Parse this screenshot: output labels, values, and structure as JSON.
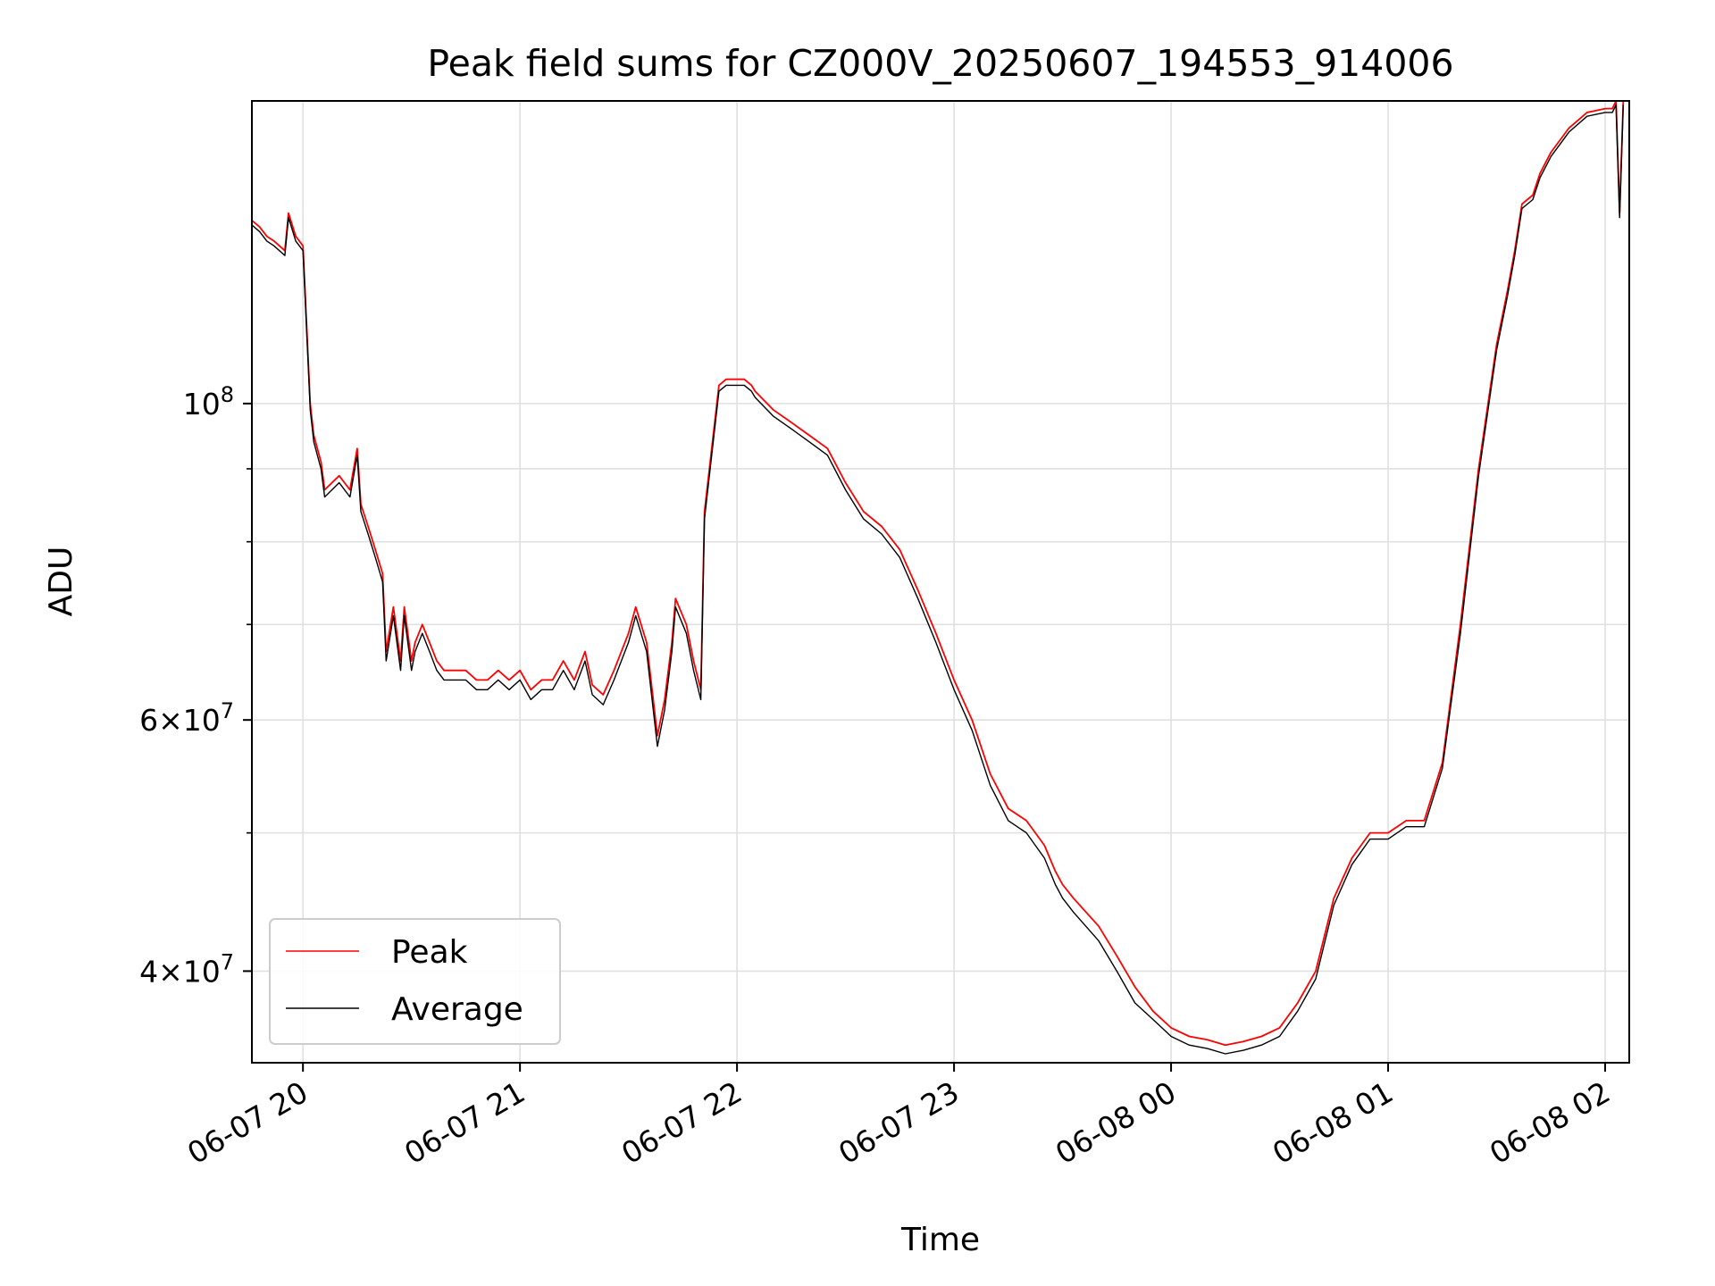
{
  "chart_data": {
    "type": "line",
    "title": "Peak field sums for CZ000V_20250607_194553_914006",
    "xlabel": "Time",
    "ylabel": "ADU",
    "yscale": "log",
    "xlim": [
      "2025-06-07 19:45:53",
      "2025-06-08 02:06:40"
    ],
    "ylim": [
      34500000,
      163000000
    ],
    "x_tick_labels": [
      "06-07 20",
      "06-07 21",
      "06-07 22",
      "06-07 23",
      "06-08 00",
      "06-08 01",
      "06-08 02"
    ],
    "x_tick_times": [
      "2025-06-07 20:00",
      "2025-06-07 21:00",
      "2025-06-07 22:00",
      "2025-06-07 23:00",
      "2025-06-08 00:00",
      "2025-06-08 01:00",
      "2025-06-08 02:00"
    ],
    "y_major_ticks": [
      {
        "value": 40000000,
        "mantissa": "4",
        "exp": "7"
      },
      {
        "value": 60000000,
        "mantissa": "6",
        "exp": "7"
      },
      {
        "value": 100000000,
        "mantissa": "",
        "exp": "8"
      }
    ],
    "y_minor_ticks": [
      50000000,
      70000000,
      80000000,
      90000000
    ],
    "grid": true,
    "legend_position": "lower-left",
    "colors": {
      "peak": "#ff0000",
      "average": "#000000",
      "grid": "#e0e0e0"
    },
    "series": [
      {
        "name": "Peak",
        "color": "#ff0000",
        "x": [
          "19:45",
          "19:48",
          "19:50",
          "19:52",
          "19:55",
          "19:56",
          "19:58",
          "20:00",
          "20:02",
          "20:03",
          "20:05",
          "20:06",
          "20:10",
          "20:13",
          "20:15",
          "20:16",
          "20:18",
          "20:20",
          "20:22",
          "20:23",
          "20:25",
          "20:27",
          "20:28",
          "20:30",
          "20:31",
          "20:33",
          "20:35",
          "20:37",
          "20:39",
          "20:42",
          "20:45",
          "20:48",
          "20:51",
          "20:54",
          "20:57",
          "21:00",
          "21:03",
          "21:06",
          "21:09",
          "21:12",
          "21:15",
          "21:18",
          "21:20",
          "21:23",
          "21:26",
          "21:30",
          "21:32",
          "21:35",
          "21:38",
          "21:40",
          "21:42",
          "21:43",
          "21:46",
          "21:48",
          "21:50",
          "21:51",
          "21:55",
          "21:57",
          "22:00",
          "22:02",
          "22:04",
          "22:05",
          "22:10",
          "22:15",
          "22:20",
          "22:25",
          "22:30",
          "22:35",
          "22:40",
          "22:45",
          "22:50",
          "22:55",
          "23:00",
          "23:05",
          "23:10",
          "23:15",
          "23:20",
          "23:25",
          "23:28",
          "23:30",
          "23:33",
          "23:40",
          "23:45",
          "23:50",
          "23:55",
          "00:00",
          "00:05",
          "00:10",
          "00:15",
          "00:20",
          "00:25",
          "00:30",
          "00:35",
          "00:40",
          "00:45",
          "00:50",
          "00:55",
          "01:00",
          "01:05",
          "01:10",
          "01:15",
          "01:20",
          "01:25",
          "01:30",
          "01:33",
          "01:35",
          "01:37",
          "01:40",
          "01:42",
          "01:45",
          "01:50",
          "01:55",
          "02:00",
          "02:01",
          "02:02",
          "02:03",
          "02:04",
          "02:05"
        ],
        "values": [
          135000000,
          133000000,
          131000000,
          130000000,
          128000000,
          136000000,
          131000000,
          129000000,
          100000000,
          95000000,
          91000000,
          87000000,
          89000000,
          87000000,
          93000000,
          85000000,
          82000000,
          79000000,
          76000000,
          67000000,
          72000000,
          66000000,
          72000000,
          66000000,
          68000000,
          70000000,
          68000000,
          66000000,
          65000000,
          65000000,
          65000000,
          64000000,
          64000000,
          65000000,
          64000000,
          65000000,
          63000000,
          64000000,
          64000000,
          66000000,
          64000000,
          67000000,
          63500000,
          62500000,
          65000000,
          69000000,
          72000000,
          68000000,
          58500000,
          62000000,
          68000000,
          73000000,
          70000000,
          66000000,
          63000000,
          84000000,
          103000000,
          104000000,
          104000000,
          104000000,
          103000000,
          102000000,
          99000000,
          97000000,
          95000000,
          93000000,
          88000000,
          84000000,
          82000000,
          79000000,
          74000000,
          69000000,
          64000000,
          60000000,
          55000000,
          52000000,
          51000000,
          49000000,
          47000000,
          46000000,
          45000000,
          43000000,
          41000000,
          39000000,
          37500000,
          36500000,
          36000000,
          35800000,
          35500000,
          35700000,
          36000000,
          36500000,
          38000000,
          40000000,
          45000000,
          48000000,
          50000000,
          50000000,
          51000000,
          51000000,
          56000000,
          70000000,
          90000000,
          110000000,
          120000000,
          128000000,
          138000000,
          140000000,
          145000000,
          150000000,
          156000000,
          160000000,
          161000000,
          161000000,
          161000000,
          163000000,
          136000000,
          163000000
        ]
      },
      {
        "name": "Average",
        "color": "#000000",
        "x": [
          "19:45",
          "19:48",
          "19:50",
          "19:52",
          "19:55",
          "19:56",
          "19:58",
          "20:00",
          "20:02",
          "20:03",
          "20:05",
          "20:06",
          "20:10",
          "20:13",
          "20:15",
          "20:16",
          "20:18",
          "20:20",
          "20:22",
          "20:23",
          "20:25",
          "20:27",
          "20:28",
          "20:30",
          "20:31",
          "20:33",
          "20:35",
          "20:37",
          "20:39",
          "20:42",
          "20:45",
          "20:48",
          "20:51",
          "20:54",
          "20:57",
          "21:00",
          "21:03",
          "21:06",
          "21:09",
          "21:12",
          "21:15",
          "21:18",
          "21:20",
          "21:23",
          "21:26",
          "21:30",
          "21:32",
          "21:35",
          "21:38",
          "21:40",
          "21:42",
          "21:43",
          "21:46",
          "21:48",
          "21:50",
          "21:51",
          "21:55",
          "21:57",
          "22:00",
          "22:02",
          "22:04",
          "22:05",
          "22:10",
          "22:15",
          "22:20",
          "22:25",
          "22:30",
          "22:35",
          "22:40",
          "22:45",
          "22:50",
          "22:55",
          "23:00",
          "23:05",
          "23:10",
          "23:15",
          "23:20",
          "23:25",
          "23:28",
          "23:30",
          "23:33",
          "23:40",
          "23:45",
          "23:50",
          "23:55",
          "00:00",
          "00:05",
          "00:10",
          "00:15",
          "00:20",
          "00:25",
          "00:30",
          "00:35",
          "00:40",
          "00:45",
          "00:50",
          "00:55",
          "01:00",
          "01:05",
          "01:10",
          "01:15",
          "01:20",
          "01:25",
          "01:30",
          "01:33",
          "01:35",
          "01:37",
          "01:40",
          "01:42",
          "01:45",
          "01:50",
          "01:55",
          "02:00",
          "02:01",
          "02:02",
          "02:03",
          "02:04",
          "02:05"
        ],
        "values": [
          134000000,
          132000000,
          130000000,
          129000000,
          127000000,
          135000000,
          130000000,
          128000000,
          99000000,
          94000000,
          90000000,
          86000000,
          88000000,
          86000000,
          92000000,
          84000000,
          81000000,
          78000000,
          75000000,
          66000000,
          71000000,
          65000000,
          71000000,
          65000000,
          67000000,
          69000000,
          67000000,
          65000000,
          64000000,
          64000000,
          64000000,
          63000000,
          63000000,
          64000000,
          63000000,
          64000000,
          62000000,
          63000000,
          63000000,
          65000000,
          63000000,
          66000000,
          62500000,
          61500000,
          64000000,
          68000000,
          71000000,
          67000000,
          57500000,
          61000000,
          67000000,
          72000000,
          69000000,
          65000000,
          62000000,
          83000000,
          102000000,
          103000000,
          103000000,
          103000000,
          102000000,
          101000000,
          98000000,
          96000000,
          94000000,
          92000000,
          87000000,
          83000000,
          81000000,
          78000000,
          73000000,
          68000000,
          63000000,
          59000000,
          54000000,
          51000000,
          50000000,
          48000000,
          46000000,
          45000000,
          44000000,
          42000000,
          40000000,
          38000000,
          37000000,
          36000000,
          35500000,
          35300000,
          35000000,
          35200000,
          35500000,
          36000000,
          37500000,
          39500000,
          44500000,
          47500000,
          49500000,
          49500000,
          50500000,
          50500000,
          55500000,
          69000000,
          89000000,
          109000000,
          119000000,
          127000000,
          137000000,
          139000000,
          144000000,
          149000000,
          155000000,
          159000000,
          160000000,
          160000000,
          160000000,
          162000000,
          135000000,
          162000000
        ]
      }
    ]
  }
}
